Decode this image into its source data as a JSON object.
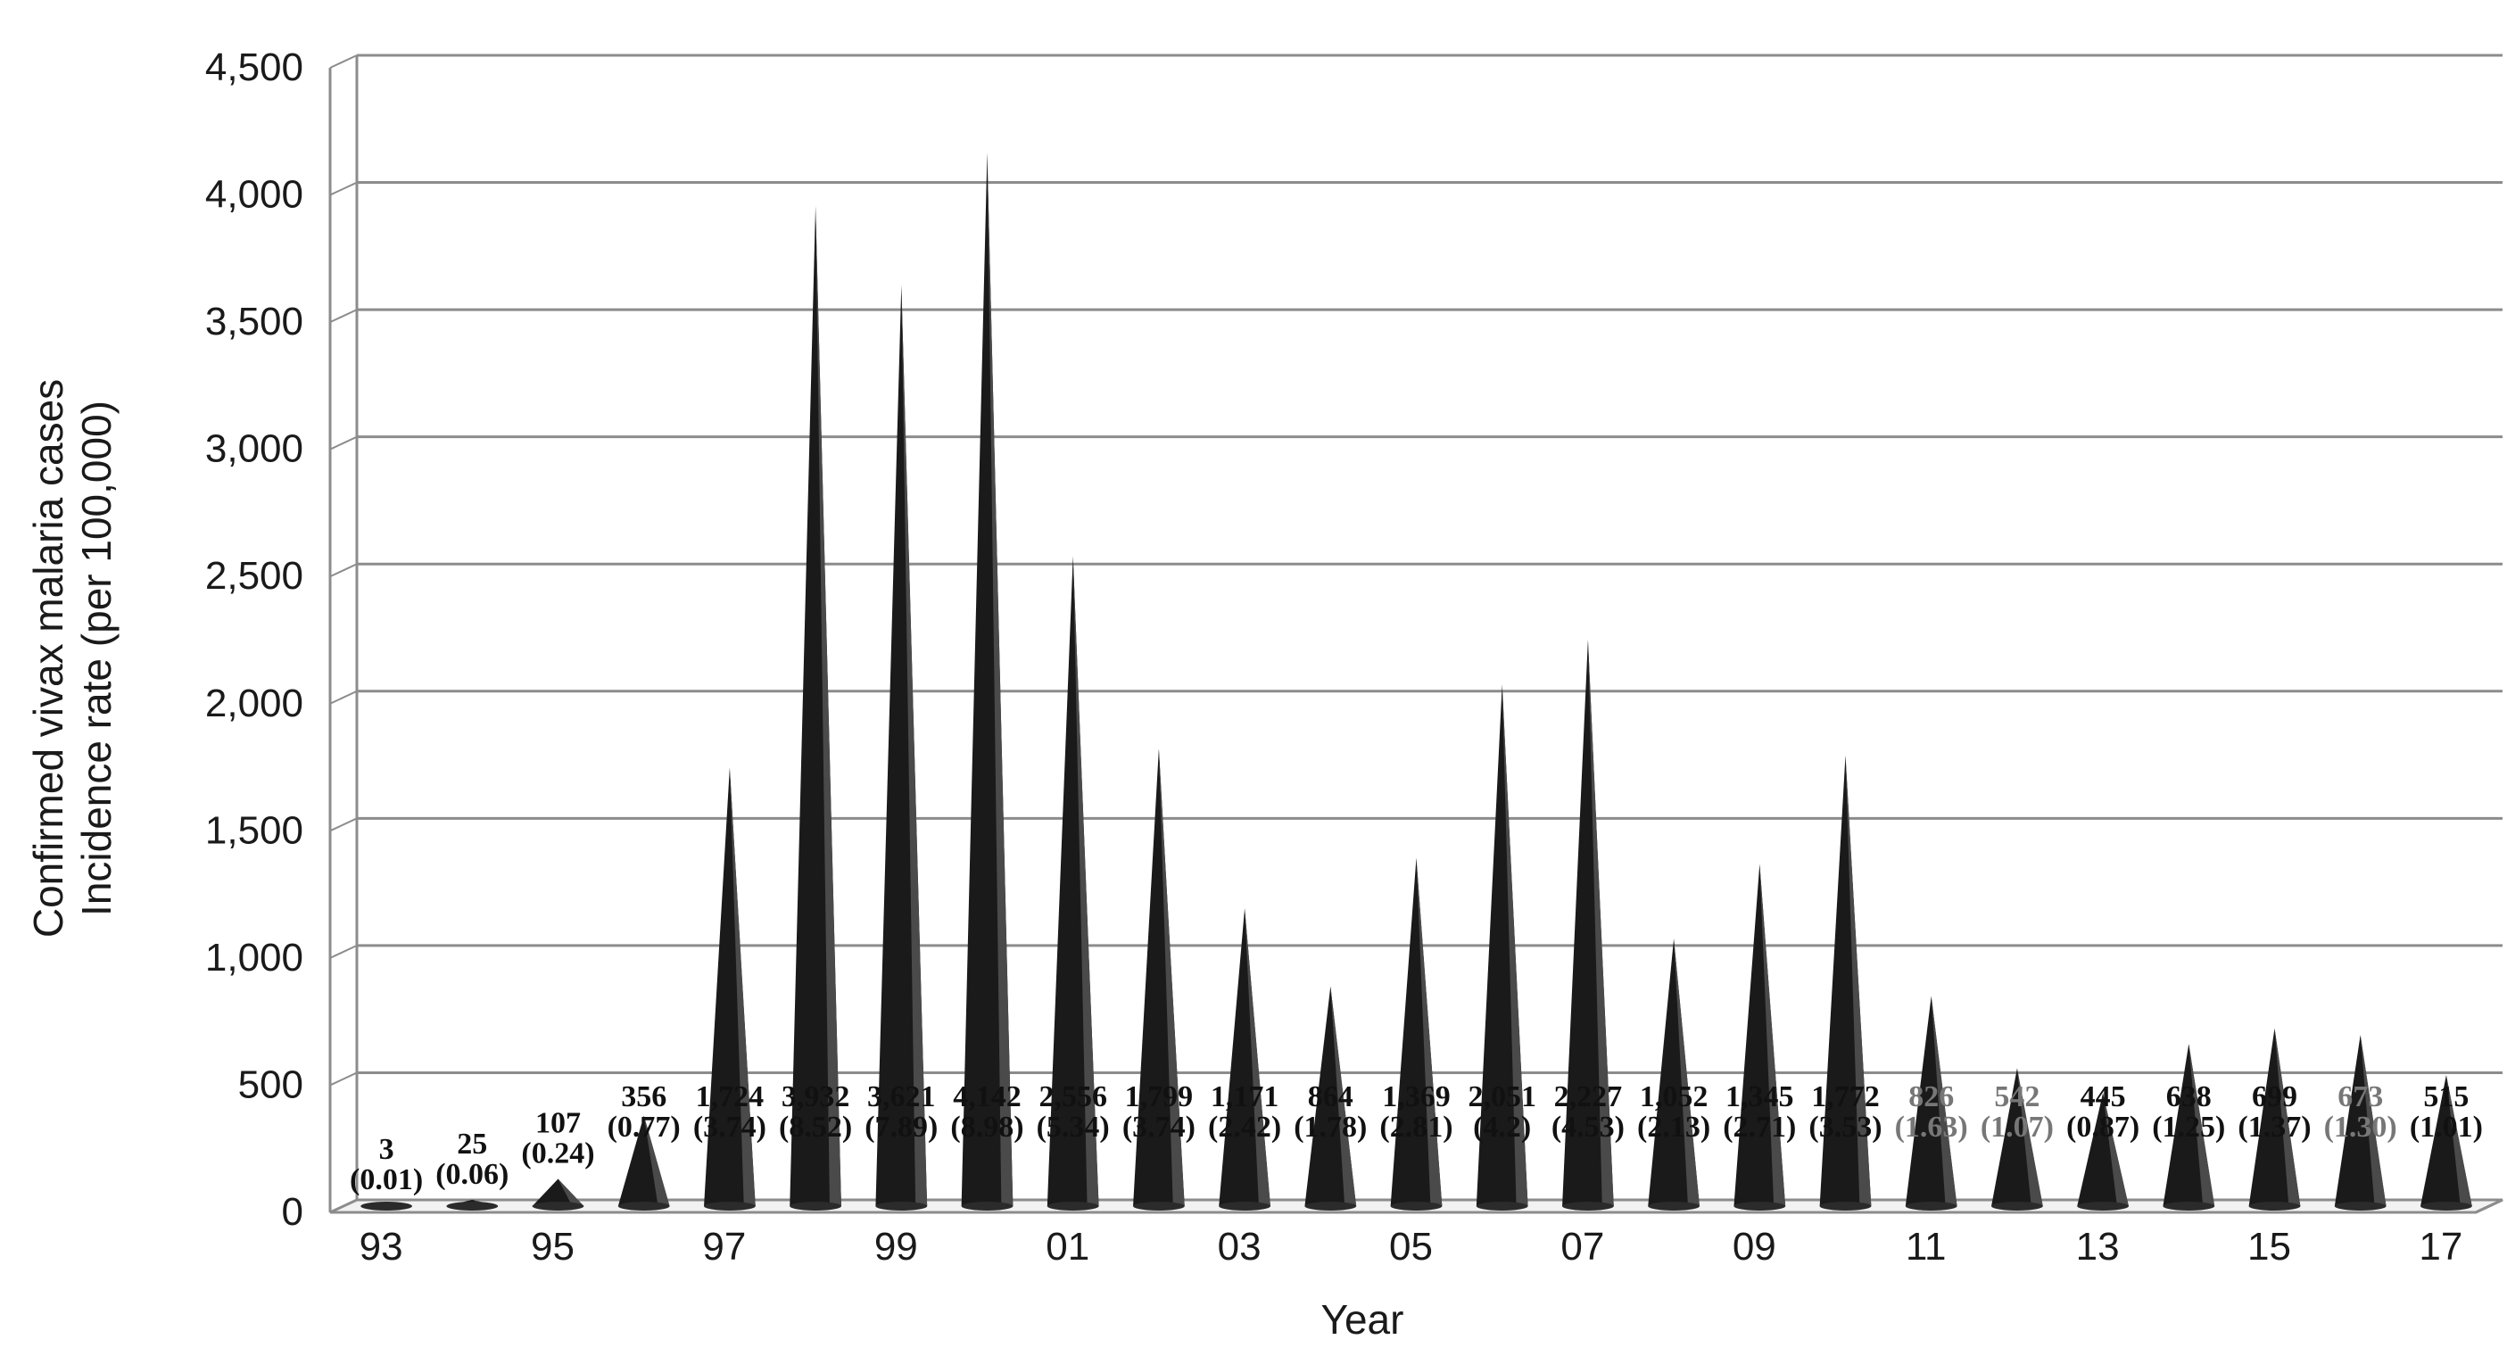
{
  "chart_data": {
    "type": "bar",
    "bar_shape": "cone",
    "x_tick_labels": [
      "93",
      "95",
      "97",
      "99",
      "01",
      "03",
      "05",
      "07",
      "09",
      "11",
      "13",
      "15",
      "17"
    ],
    "ylabel_line1": "Confirmed vivax malaria cases",
    "ylabel_line2": "Incidence rate (per 100,000)",
    "xlabel": "Year",
    "ylim": [
      0,
      4500
    ],
    "yticks": [
      "0",
      "500",
      "1,000",
      "1,500",
      "2,000",
      "2,500",
      "3,000",
      "3,500",
      "4,000",
      "4,500"
    ],
    "grid": true,
    "bar_color": "#1a1a1a",
    "grid_color": "#8c8c8c",
    "series": [
      {
        "values": [
          3,
          25,
          107,
          356,
          1724,
          3932,
          3621,
          4142,
          2556,
          1799,
          1171,
          864,
          1369,
          2051,
          2227,
          1052,
          1345,
          1772,
          826,
          542,
          445,
          638,
          699,
          673,
          515
        ],
        "labels": [
          "3",
          "25",
          "107",
          "356",
          "1,724",
          "3,932",
          "3,621",
          "4,142",
          "2,556",
          "1,799",
          "1,171",
          "864",
          "1,369",
          "2,051",
          "2,227",
          "1,052",
          "1,345",
          "1,772",
          "826",
          "542",
          "445",
          "638",
          "699",
          "673",
          "515"
        ],
        "rates": [
          "(0.01)",
          "(0.06)",
          "(0.24)",
          "(0.77)",
          "(3.74)",
          "(8.52)",
          "(7.89)",
          "(8.98)",
          "(5.34)",
          "(3.74)",
          "(2.42)",
          "(1.78)",
          "(2.81)",
          "(4.2)",
          "(4.53)",
          "(2.13)",
          "(2.71)",
          "(3.53)",
          "(1.63)",
          "(1.07)",
          "(0.87)",
          "(1.25)",
          "(1.37)",
          "(1.30)",
          "(1.01)"
        ],
        "muted_label_indexes": [
          18,
          19,
          23
        ]
      }
    ]
  }
}
